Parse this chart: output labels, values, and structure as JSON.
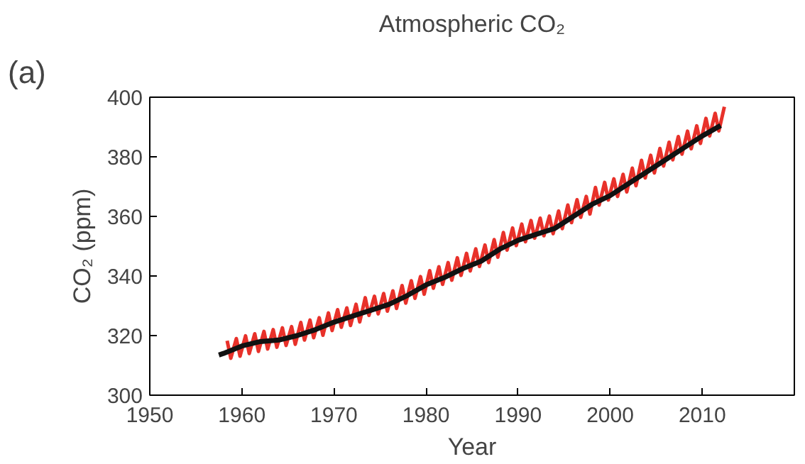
{
  "chart_data": {
    "type": "line",
    "title": "Atmospheric CO₂",
    "xlabel": "Year",
    "ylabel": "CO₂ (ppm)",
    "annotations": [
      "(a)"
    ],
    "xlim": [
      1950,
      2020
    ],
    "xticks": [
      1950,
      1960,
      1970,
      1980,
      1990,
      2000,
      2010
    ],
    "ylim": [
      300,
      400
    ],
    "yticks": [
      300,
      320,
      340,
      360,
      380,
      400
    ],
    "grid": false,
    "line_style": "solid",
    "series": [
      {
        "color": "#e8312a",
        "x": [
          1958.4,
          1958.8,
          1959.4,
          1959.8,
          1960.4,
          1960.8,
          1961.4,
          1961.8,
          1962.4,
          1962.8,
          1963.4,
          1963.8,
          1964.4,
          1964.8,
          1965.4,
          1965.8,
          1966.4,
          1966.8,
          1967.4,
          1967.8,
          1968.4,
          1968.8,
          1969.4,
          1969.8,
          1970.4,
          1970.8,
          1971.4,
          1971.8,
          1972.4,
          1972.8,
          1973.4,
          1973.8,
          1974.4,
          1974.8,
          1975.4,
          1975.8,
          1976.4,
          1976.8,
          1977.4,
          1977.8,
          1978.4,
          1978.8,
          1979.4,
          1979.8,
          1980.4,
          1980.8,
          1981.4,
          1981.8,
          1982.4,
          1982.8,
          1983.4,
          1983.8,
          1984.4,
          1984.8,
          1985.4,
          1985.8,
          1986.4,
          1986.8,
          1987.4,
          1987.8,
          1988.4,
          1988.8,
          1989.4,
          1989.8,
          1990.4,
          1990.8,
          1991.4,
          1991.8,
          1992.4,
          1992.8,
          1993.4,
          1993.8,
          1994.4,
          1994.8,
          1995.4,
          1995.8,
          1996.4,
          1996.8,
          1997.4,
          1997.8,
          1998.4,
          1998.8,
          1999.4,
          1999.8,
          2000.4,
          2000.8,
          2001.4,
          2001.8,
          2002.4,
          2002.8,
          2003.4,
          2003.8,
          2004.4,
          2004.8,
          2005.4,
          2005.8,
          2006.4,
          2006.8,
          2007.4,
          2007.8,
          2008.4,
          2008.8,
          2009.4,
          2009.8,
          2010.4,
          2010.8,
          2011.4,
          2011.8,
          2012.4
        ],
        "values": [
          318.3,
          312.4,
          319.0,
          313.1,
          319.9,
          314.0,
          320.6,
          314.7,
          321.4,
          315.5,
          322.0,
          316.1,
          322.6,
          316.7,
          323.0,
          317.1,
          324.4,
          318.5,
          325.2,
          319.3,
          326.0,
          320.1,
          327.6,
          321.7,
          328.7,
          322.8,
          329.3,
          323.4,
          330.5,
          324.6,
          332.7,
          326.8,
          333.2,
          327.3,
          334.1,
          328.2,
          335.0,
          329.1,
          336.8,
          330.9,
          338.4,
          332.5,
          339.8,
          333.9,
          341.8,
          335.9,
          343.1,
          337.2,
          344.5,
          338.6,
          346.1,
          340.2,
          347.6,
          341.7,
          349.1,
          343.2,
          350.4,
          344.5,
          352.2,
          346.3,
          354.6,
          348.7,
          356.1,
          350.2,
          357.4,
          351.5,
          358.6,
          352.7,
          359.4,
          353.5,
          360.1,
          354.2,
          361.8,
          355.9,
          363.8,
          357.9,
          365.6,
          359.7,
          366.7,
          360.8,
          369.7,
          363.8,
          371.4,
          365.5,
          372.6,
          366.7,
          374.1,
          368.2,
          376.2,
          370.3,
          378.8,
          372.9,
          380.5,
          374.6,
          382.8,
          376.9,
          384.9,
          379.0,
          386.8,
          380.9,
          388.6,
          382.7,
          390.4,
          384.5,
          392.9,
          387.0,
          394.6,
          388.7,
          396.8
        ]
      },
      {
        "color": "#111111",
        "x": [
          1957.5,
          1958,
          1960,
          1962,
          1964,
          1966,
          1968,
          1970,
          1972,
          1974,
          1976,
          1978,
          1980,
          1982,
          1984,
          1986,
          1988,
          1990,
          1992,
          1994,
          1996,
          1998,
          2000,
          2002,
          2004,
          2006,
          2008,
          2010,
          2012
        ],
        "values": [
          313.5,
          314,
          316.5,
          318,
          318.5,
          320,
          322,
          324.5,
          326.5,
          328.5,
          330.5,
          333.5,
          337,
          339.5,
          342.5,
          345,
          349,
          352,
          354,
          356,
          360,
          364,
          367,
          371,
          375,
          379,
          383,
          387,
          390.5
        ]
      }
    ]
  }
}
